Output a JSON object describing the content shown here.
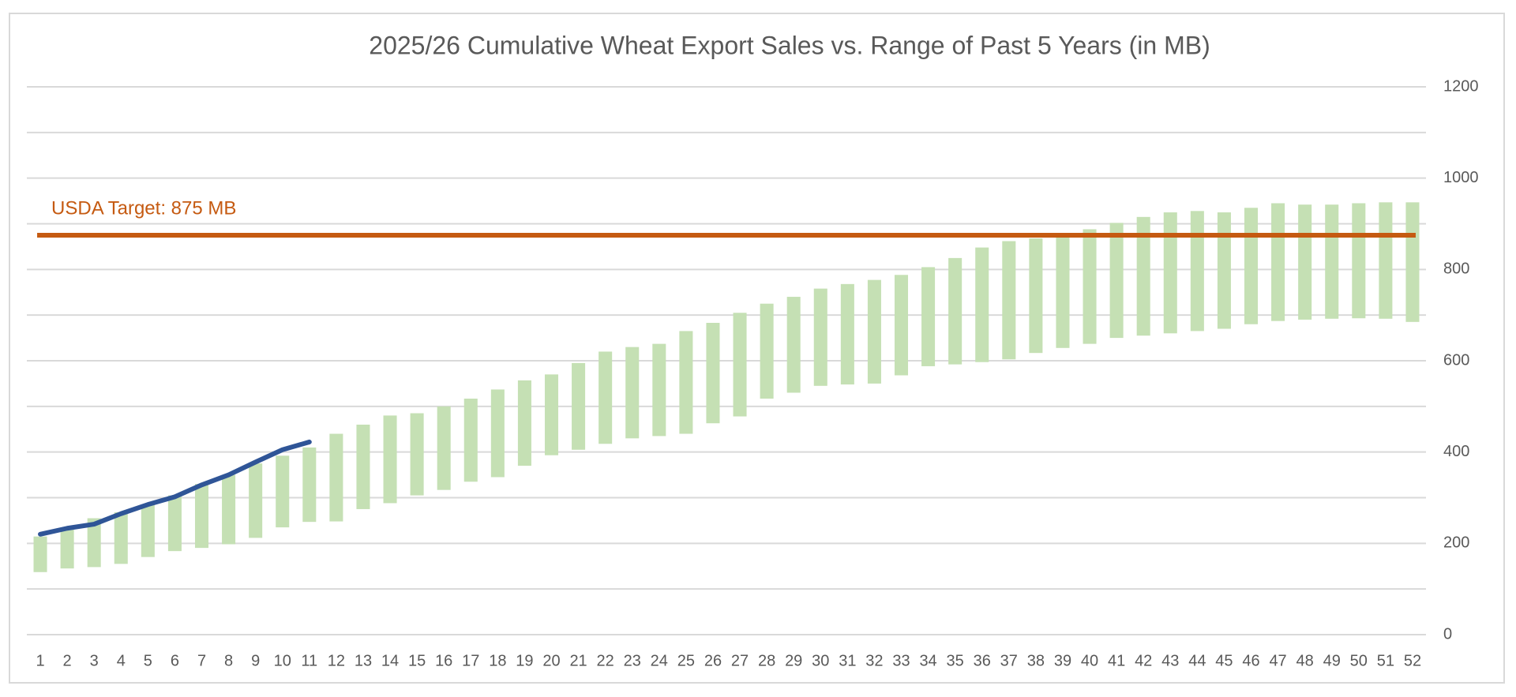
{
  "chart_data": {
    "type": "floating-bar-line",
    "title": "2025/26 Cumulative Wheat Export Sales vs. Range of Past 5 Years (in MB)",
    "categories": [
      "1",
      "2",
      "3",
      "4",
      "5",
      "6",
      "7",
      "8",
      "9",
      "10",
      "11",
      "12",
      "13",
      "14",
      "15",
      "16",
      "17",
      "18",
      "19",
      "20",
      "21",
      "22",
      "23",
      "24",
      "25",
      "26",
      "27",
      "28",
      "29",
      "30",
      "31",
      "32",
      "33",
      "34",
      "35",
      "36",
      "37",
      "38",
      "39",
      "40",
      "41",
      "42",
      "43",
      "44",
      "45",
      "46",
      "47",
      "48",
      "49",
      "50",
      "51",
      "52"
    ],
    "range_low": [
      137,
      145,
      148,
      155,
      170,
      183,
      190,
      198,
      212,
      235,
      247,
      248,
      275,
      288,
      305,
      317,
      335,
      345,
      370,
      393,
      405,
      418,
      430,
      435,
      440,
      463,
      478,
      517,
      530,
      545,
      548,
      550,
      568,
      588,
      592,
      597,
      603,
      617,
      628,
      637,
      650,
      655,
      660,
      665,
      670,
      680,
      687,
      690,
      692,
      693,
      692,
      685
    ],
    "range_high": [
      215,
      235,
      255,
      268,
      285,
      305,
      330,
      350,
      375,
      392,
      410,
      440,
      460,
      480,
      485,
      500,
      517,
      537,
      557,
      570,
      595,
      620,
      630,
      637,
      665,
      683,
      705,
      725,
      740,
      758,
      768,
      777,
      788,
      805,
      825,
      848,
      862,
      868,
      875,
      888,
      902,
      915,
      925,
      928,
      925,
      935,
      945,
      942,
      942,
      945,
      947,
      947
    ],
    "range_color": "#c5e0b4",
    "line_values": [
      220,
      233,
      242,
      265,
      285,
      302,
      328,
      350,
      378,
      405,
      422
    ],
    "line_color": "#2f5597",
    "target": 875,
    "target_label": "USDA Target: 875 MB",
    "target_color": "#c55a11",
    "ylim": [
      0,
      1200
    ],
    "yticks": [
      0,
      200,
      400,
      600,
      800,
      1000,
      1200
    ],
    "minor_grid": [
      100,
      300,
      500,
      700,
      900,
      1100
    ],
    "grid": true,
    "y_axis_side": "right"
  }
}
